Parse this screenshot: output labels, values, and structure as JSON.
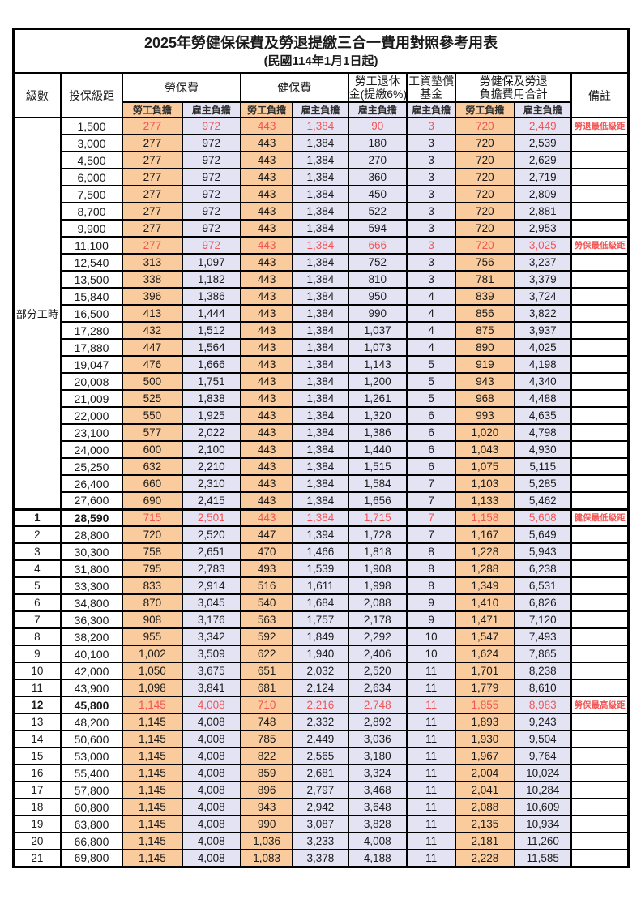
{
  "title": "2025年勞健保保費及勞退提繳三合一費用對照參考用表",
  "subtitle": "(民國114年1月1日起)",
  "header": {
    "level": "級數",
    "bracket": "投保級距",
    "labor_fee": "勞保費",
    "health_fee": "健保費",
    "pension_line1": "勞工退休",
    "pension_line2": "金(提繳6%)",
    "wage_fund_line1": "工資墊償",
    "wage_fund_line2": "基金",
    "total_line1": "勞健保及勞退",
    "total_line2": "負擔費用合計",
    "remark": "備註",
    "employee_share": "勞工負擔",
    "employer_share": "雇主負擔"
  },
  "part_time_label": "部分工時",
  "colors": {
    "employee_bg": "#F9CB9D",
    "employer_bg": "#E4E3F4",
    "highlight_text": "#F15555",
    "border": "#000000"
  },
  "rows": [
    {
      "level": "",
      "bracket": "1,500",
      "values": [
        "277",
        "972",
        "443",
        "1,384",
        "90",
        "3",
        "720",
        "2,449"
      ],
      "remark": "勞退最低級距",
      "red": true,
      "bold": false
    },
    {
      "level": "",
      "bracket": "3,000",
      "values": [
        "277",
        "972",
        "443",
        "1,384",
        "180",
        "3",
        "720",
        "2,539"
      ],
      "remark": "",
      "red": false,
      "bold": false
    },
    {
      "level": "",
      "bracket": "4,500",
      "values": [
        "277",
        "972",
        "443",
        "1,384",
        "270",
        "3",
        "720",
        "2,629"
      ],
      "remark": "",
      "red": false,
      "bold": false
    },
    {
      "level": "",
      "bracket": "6,000",
      "values": [
        "277",
        "972",
        "443",
        "1,384",
        "360",
        "3",
        "720",
        "2,719"
      ],
      "remark": "",
      "red": false,
      "bold": false
    },
    {
      "level": "",
      "bracket": "7,500",
      "values": [
        "277",
        "972",
        "443",
        "1,384",
        "450",
        "3",
        "720",
        "2,809"
      ],
      "remark": "",
      "red": false,
      "bold": false
    },
    {
      "level": "",
      "bracket": "8,700",
      "values": [
        "277",
        "972",
        "443",
        "1,384",
        "522",
        "3",
        "720",
        "2,881"
      ],
      "remark": "",
      "red": false,
      "bold": false
    },
    {
      "level": "",
      "bracket": "9,900",
      "values": [
        "277",
        "972",
        "443",
        "1,384",
        "594",
        "3",
        "720",
        "2,953"
      ],
      "remark": "",
      "red": false,
      "bold": false
    },
    {
      "level": "",
      "bracket": "11,100",
      "values": [
        "277",
        "972",
        "443",
        "1,384",
        "666",
        "3",
        "720",
        "3,025"
      ],
      "remark": "勞保最低級距",
      "red": true,
      "bold": false
    },
    {
      "level": "",
      "bracket": "12,540",
      "values": [
        "313",
        "1,097",
        "443",
        "1,384",
        "752",
        "3",
        "756",
        "3,237"
      ],
      "remark": "",
      "red": false,
      "bold": false
    },
    {
      "level": "",
      "bracket": "13,500",
      "values": [
        "338",
        "1,182",
        "443",
        "1,384",
        "810",
        "3",
        "781",
        "3,379"
      ],
      "remark": "",
      "red": false,
      "bold": false
    },
    {
      "level": "",
      "bracket": "15,840",
      "values": [
        "396",
        "1,386",
        "443",
        "1,384",
        "950",
        "4",
        "839",
        "3,724"
      ],
      "remark": "",
      "red": false,
      "bold": false
    },
    {
      "level": "",
      "bracket": "16,500",
      "values": [
        "413",
        "1,444",
        "443",
        "1,384",
        "990",
        "4",
        "856",
        "3,822"
      ],
      "remark": "",
      "red": false,
      "bold": false
    },
    {
      "level": "",
      "bracket": "17,280",
      "values": [
        "432",
        "1,512",
        "443",
        "1,384",
        "1,037",
        "4",
        "875",
        "3,937"
      ],
      "remark": "",
      "red": false,
      "bold": false
    },
    {
      "level": "",
      "bracket": "17,880",
      "values": [
        "447",
        "1,564",
        "443",
        "1,384",
        "1,073",
        "4",
        "890",
        "4,025"
      ],
      "remark": "",
      "red": false,
      "bold": false
    },
    {
      "level": "",
      "bracket": "19,047",
      "values": [
        "476",
        "1,666",
        "443",
        "1,384",
        "1,143",
        "5",
        "919",
        "4,198"
      ],
      "remark": "",
      "red": false,
      "bold": false
    },
    {
      "level": "",
      "bracket": "20,008",
      "values": [
        "500",
        "1,751",
        "443",
        "1,384",
        "1,200",
        "5",
        "943",
        "4,340"
      ],
      "remark": "",
      "red": false,
      "bold": false
    },
    {
      "level": "",
      "bracket": "21,009",
      "values": [
        "525",
        "1,838",
        "443",
        "1,384",
        "1,261",
        "5",
        "968",
        "4,488"
      ],
      "remark": "",
      "red": false,
      "bold": false
    },
    {
      "level": "",
      "bracket": "22,000",
      "values": [
        "550",
        "1,925",
        "443",
        "1,384",
        "1,320",
        "6",
        "993",
        "4,635"
      ],
      "remark": "",
      "red": false,
      "bold": false
    },
    {
      "level": "",
      "bracket": "23,100",
      "values": [
        "577",
        "2,022",
        "443",
        "1,384",
        "1,386",
        "6",
        "1,020",
        "4,798"
      ],
      "remark": "",
      "red": false,
      "bold": false
    },
    {
      "level": "",
      "bracket": "24,000",
      "values": [
        "600",
        "2,100",
        "443",
        "1,384",
        "1,440",
        "6",
        "1,043",
        "4,930"
      ],
      "remark": "",
      "red": false,
      "bold": false
    },
    {
      "level": "",
      "bracket": "25,250",
      "values": [
        "632",
        "2,210",
        "443",
        "1,384",
        "1,515",
        "6",
        "1,075",
        "5,115"
      ],
      "remark": "",
      "red": false,
      "bold": false
    },
    {
      "level": "",
      "bracket": "26,400",
      "values": [
        "660",
        "2,310",
        "443",
        "1,384",
        "1,584",
        "7",
        "1,103",
        "5,285"
      ],
      "remark": "",
      "red": false,
      "bold": false
    },
    {
      "level": "",
      "bracket": "27,600",
      "values": [
        "690",
        "2,415",
        "443",
        "1,384",
        "1,656",
        "7",
        "1,133",
        "5,462"
      ],
      "remark": "",
      "red": false,
      "bold": false
    },
    {
      "level": "1",
      "bracket": "28,590",
      "values": [
        "715",
        "2,501",
        "443",
        "1,384",
        "1,715",
        "7",
        "1,158",
        "5,608"
      ],
      "remark": "健保最低級距",
      "red": true,
      "bold": true
    },
    {
      "level": "2",
      "bracket": "28,800",
      "values": [
        "720",
        "2,520",
        "447",
        "1,394",
        "1,728",
        "7",
        "1,167",
        "5,649"
      ],
      "remark": "",
      "red": false,
      "bold": false
    },
    {
      "level": "3",
      "bracket": "30,300",
      "values": [
        "758",
        "2,651",
        "470",
        "1,466",
        "1,818",
        "8",
        "1,228",
        "5,943"
      ],
      "remark": "",
      "red": false,
      "bold": false
    },
    {
      "level": "4",
      "bracket": "31,800",
      "values": [
        "795",
        "2,783",
        "493",
        "1,539",
        "1,908",
        "8",
        "1,288",
        "6,238"
      ],
      "remark": "",
      "red": false,
      "bold": false
    },
    {
      "level": "5",
      "bracket": "33,300",
      "values": [
        "833",
        "2,914",
        "516",
        "1,611",
        "1,998",
        "8",
        "1,349",
        "6,531"
      ],
      "remark": "",
      "red": false,
      "bold": false
    },
    {
      "level": "6",
      "bracket": "34,800",
      "values": [
        "870",
        "3,045",
        "540",
        "1,684",
        "2,088",
        "9",
        "1,410",
        "6,826"
      ],
      "remark": "",
      "red": false,
      "bold": false
    },
    {
      "level": "7",
      "bracket": "36,300",
      "values": [
        "908",
        "3,176",
        "563",
        "1,757",
        "2,178",
        "9",
        "1,471",
        "7,120"
      ],
      "remark": "",
      "red": false,
      "bold": false
    },
    {
      "level": "8",
      "bracket": "38,200",
      "values": [
        "955",
        "3,342",
        "592",
        "1,849",
        "2,292",
        "10",
        "1,547",
        "7,493"
      ],
      "remark": "",
      "red": false,
      "bold": false
    },
    {
      "level": "9",
      "bracket": "40,100",
      "values": [
        "1,002",
        "3,509",
        "622",
        "1,940",
        "2,406",
        "10",
        "1,624",
        "7,865"
      ],
      "remark": "",
      "red": false,
      "bold": false
    },
    {
      "level": "10",
      "bracket": "42,000",
      "values": [
        "1,050",
        "3,675",
        "651",
        "2,032",
        "2,520",
        "11",
        "1,701",
        "8,238"
      ],
      "remark": "",
      "red": false,
      "bold": false
    },
    {
      "level": "11",
      "bracket": "43,900",
      "values": [
        "1,098",
        "3,841",
        "681",
        "2,124",
        "2,634",
        "11",
        "1,779",
        "8,610"
      ],
      "remark": "",
      "red": false,
      "bold": false
    },
    {
      "level": "12",
      "bracket": "45,800",
      "values": [
        "1,145",
        "4,008",
        "710",
        "2,216",
        "2,748",
        "11",
        "1,855",
        "8,983"
      ],
      "remark": "勞保最高級距",
      "red": true,
      "bold": true
    },
    {
      "level": "13",
      "bracket": "48,200",
      "values": [
        "1,145",
        "4,008",
        "748",
        "2,332",
        "2,892",
        "11",
        "1,893",
        "9,243"
      ],
      "remark": "",
      "red": false,
      "bold": false
    },
    {
      "level": "14",
      "bracket": "50,600",
      "values": [
        "1,145",
        "4,008",
        "785",
        "2,449",
        "3,036",
        "11",
        "1,930",
        "9,504"
      ],
      "remark": "",
      "red": false,
      "bold": false
    },
    {
      "level": "15",
      "bracket": "53,000",
      "values": [
        "1,145",
        "4,008",
        "822",
        "2,565",
        "3,180",
        "11",
        "1,967",
        "9,764"
      ],
      "remark": "",
      "red": false,
      "bold": false
    },
    {
      "level": "16",
      "bracket": "55,400",
      "values": [
        "1,145",
        "4,008",
        "859",
        "2,681",
        "3,324",
        "11",
        "2,004",
        "10,024"
      ],
      "remark": "",
      "red": false,
      "bold": false
    },
    {
      "level": "17",
      "bracket": "57,800",
      "values": [
        "1,145",
        "4,008",
        "896",
        "2,797",
        "3,468",
        "11",
        "2,041",
        "10,284"
      ],
      "remark": "",
      "red": false,
      "bold": false
    },
    {
      "level": "18",
      "bracket": "60,800",
      "values": [
        "1,145",
        "4,008",
        "943",
        "2,942",
        "3,648",
        "11",
        "2,088",
        "10,609"
      ],
      "remark": "",
      "red": false,
      "bold": false
    },
    {
      "level": "19",
      "bracket": "63,800",
      "values": [
        "1,145",
        "4,008",
        "990",
        "3,087",
        "3,828",
        "11",
        "2,135",
        "10,934"
      ],
      "remark": "",
      "red": false,
      "bold": false
    },
    {
      "level": "20",
      "bracket": "66,800",
      "values": [
        "1,145",
        "4,008",
        "1,036",
        "3,233",
        "4,008",
        "11",
        "2,181",
        "11,260"
      ],
      "remark": "",
      "red": false,
      "bold": false
    },
    {
      "level": "21",
      "bracket": "69,800",
      "values": [
        "1,145",
        "4,008",
        "1,083",
        "3,378",
        "4,188",
        "11",
        "2,228",
        "11,585"
      ],
      "remark": "",
      "red": false,
      "bold": false
    }
  ]
}
